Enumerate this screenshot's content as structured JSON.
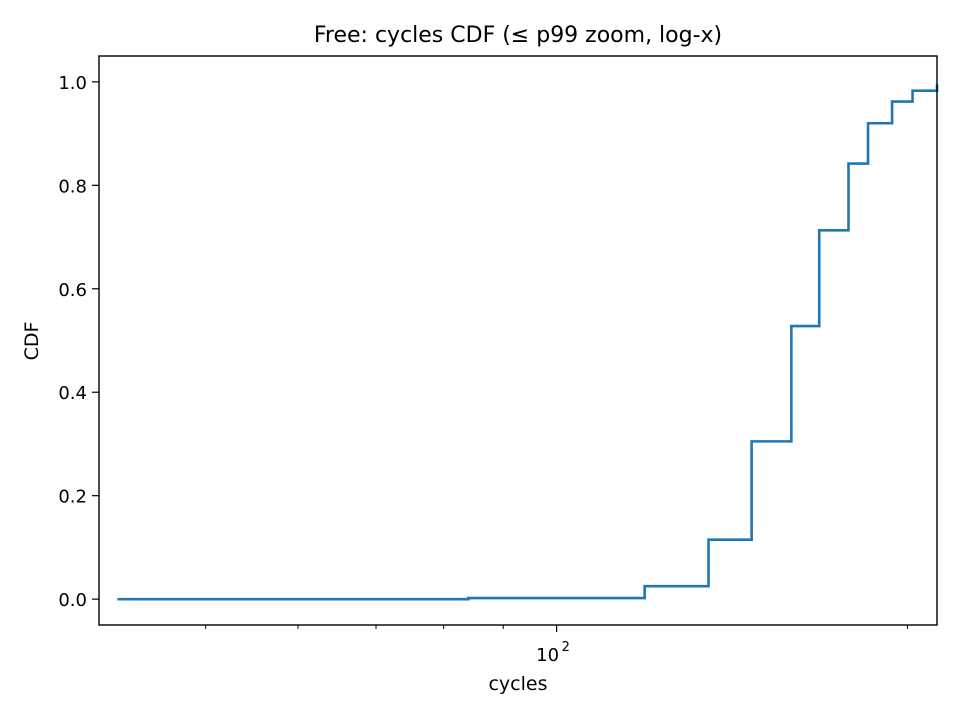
{
  "chart_data": {
    "type": "line",
    "step": "post",
    "title": "Free: cycles CDF (≤ p99 zoom, log-x)",
    "xlabel": "cycles",
    "ylabel": "CDF",
    "x_scale": "log",
    "xlim": [
      40.5,
      212
    ],
    "ylim": [
      -0.05,
      1.05
    ],
    "x_major_ticks": [
      {
        "value": 100,
        "label": "10",
        "exp": "2"
      }
    ],
    "x_minor_ticks": [
      40,
      50,
      60,
      70,
      80,
      90,
      200
    ],
    "y_ticks": [
      {
        "value": 0.0,
        "label": "0.0"
      },
      {
        "value": 0.2,
        "label": "0.2"
      },
      {
        "value": 0.4,
        "label": "0.4"
      },
      {
        "value": 0.6,
        "label": "0.6"
      },
      {
        "value": 0.8,
        "label": "0.8"
      },
      {
        "value": 1.0,
        "label": "1.0"
      }
    ],
    "grid": false,
    "series": [
      {
        "color": "#1f77b4",
        "x": [
          42,
          84,
          119,
          135,
          147,
          159,
          168,
          178,
          185,
          194,
          202,
          212
        ],
        "y": [
          0.0,
          0.002,
          0.025,
          0.115,
          0.305,
          0.528,
          0.713,
          0.842,
          0.92,
          0.962,
          0.983,
          0.995
        ]
      }
    ]
  }
}
